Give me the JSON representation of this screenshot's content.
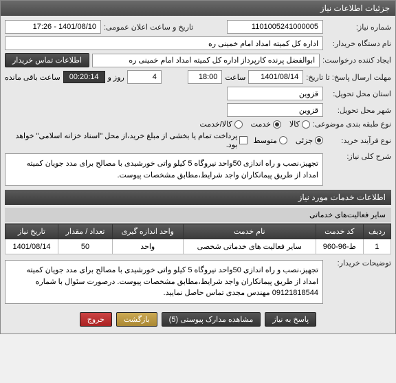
{
  "window": {
    "title": "جزئیات اطلاعات نیاز"
  },
  "fields": {
    "need_number_label": "شماره نیاز:",
    "need_number": "1101005241000005",
    "announce_label": "تاریخ و ساعت اعلان عمومی:",
    "announce_value": "1401/08/10 - 17:26",
    "buyer_org_label": "نام دستگاه خریدار:",
    "buyer_org": "اداره کل کمیته امداد امام خمینی  ره",
    "requester_label": "ایجاد کننده درخواست:",
    "requester": "ابوالفضل پرنده کارپرداز اداره کل کمیته امداد امام خمینی  ره",
    "contact_btn": "اطلاعات تماس خریدار",
    "deadline_label": "مهلت ارسال پاسخ: تا تاریخ:",
    "deadline_date": "1401/08/14",
    "time_label": "ساعت",
    "deadline_time": "18:00",
    "days_label": "روز و",
    "days_value": "4",
    "countdown": "00:20:14",
    "remaining_label": "ساعت باقی مانده",
    "province_label": "استان محل تحویل:",
    "province": "قزوین",
    "city_label": "شهر محل تحویل:",
    "city": "قزوین",
    "category_label": "نوع طبقه بندی موضوعی:",
    "radio_goods": "کالا",
    "radio_service": "خدمت",
    "radio_both": "کالا/خدمت",
    "purchase_type_label": "نوع فرآیند خرید:",
    "radio_partial": "جزئی",
    "radio_medium": "متوسط",
    "payment_note": "پرداخت تمام یا بخشی از مبلغ خرید،از محل \"اسناد خزانه اسلامی\" خواهد بود.",
    "summary_label": "شرح کلی نیاز:",
    "summary": "تجهیز،نصب و راه اندازی 50واحد نیروگاه 5 کیلو واتی خورشیدی با مصالح برای مدد جویان کمیته امداد از طریق پیمانکاران واجد شرایط،مطابق مشخصات پیوست.",
    "services_header": "اطلاعات خدمات مورد نیاز",
    "subsection": "سایر فعالیت‌های خدماتی",
    "buyer_notes_label": "توضیحات خریدار:",
    "buyer_notes": "تجهیز،نصب و راه اندازی 50واحد نیروگاه 5 کیلو واتی خورشیدی با مصالح برای مدد جویان کمیته امداد از طریق پیمانکاران واجد شرایط،مطابق مشخصات پیوست. درصورت سئوال با شماره 09121818544 مهندس مجدی تماس حاصل نمایید."
  },
  "table": {
    "headers": [
      "ردیف",
      "کد خدمت",
      "نام خدمت",
      "واحد اندازه گیری",
      "تعداد / مقدار",
      "تاریخ نیاز"
    ],
    "rows": [
      [
        "1",
        "ط-96-960",
        "سایر فعالیت های خدماتی شخصی",
        "واحد",
        "50",
        "1401/08/14"
      ]
    ]
  },
  "buttons": {
    "respond": "پاسخ به نیاز",
    "attachments": "مشاهده مدارک پیوستی (5)",
    "back": "بازگشت",
    "exit": "خروج"
  }
}
